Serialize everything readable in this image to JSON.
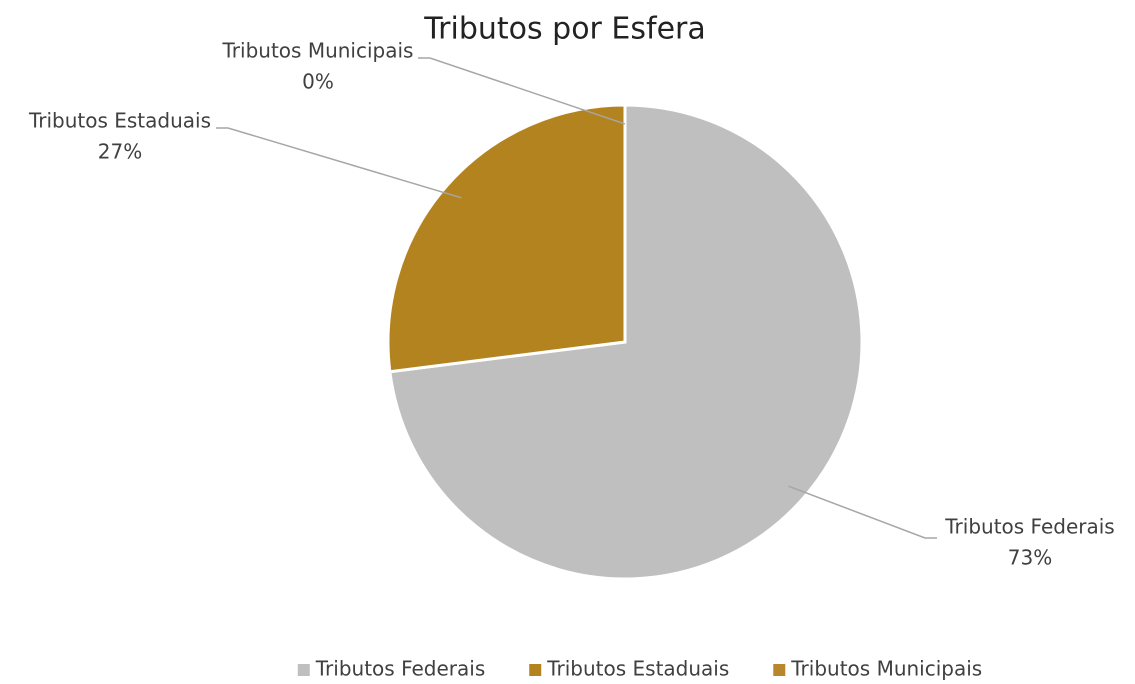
{
  "chart_data": {
    "type": "pie",
    "title": "Tributos por Esfera",
    "categories": [
      "Tributos Federais",
      "Tributos Estaduais",
      "Tributos Municipais"
    ],
    "values": [
      73,
      27,
      0
    ],
    "value_labels": [
      "73%",
      "27%",
      "0%"
    ],
    "colors": [
      "#bfbfbf",
      "#b38320",
      "#b8862b"
    ],
    "legend": "bottom"
  }
}
